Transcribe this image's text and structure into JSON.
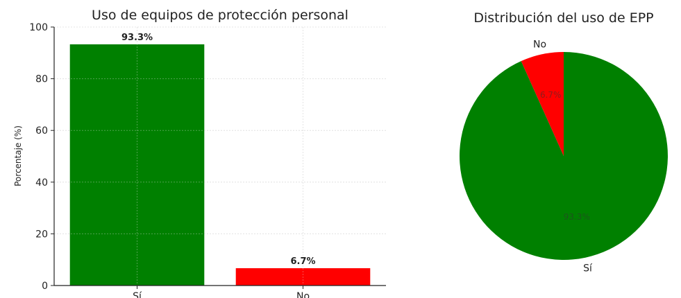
{
  "chart_data": [
    {
      "type": "bar",
      "title": "Uso de equipos de protección personal",
      "ylabel": "Porcentaje (%)",
      "xlabel": "",
      "categories": [
        "Sí",
        "No"
      ],
      "values": [
        93.3,
        6.7
      ],
      "value_labels": [
        "93.3%",
        "6.7%"
      ],
      "colors": [
        "#008000",
        "#ff0000"
      ],
      "ylim": [
        0,
        100
      ],
      "yticks": [
        "0",
        "20",
        "40",
        "60",
        "80",
        "100"
      ],
      "grid": true
    },
    {
      "type": "pie",
      "title": "Distribución del uso de EPP",
      "labels": [
        "Sí",
        "No"
      ],
      "values": [
        93.3,
        6.7
      ],
      "pct_labels": [
        "93.3%",
        "6.7%"
      ],
      "colors": [
        "#008000",
        "#ff0000"
      ]
    }
  ]
}
